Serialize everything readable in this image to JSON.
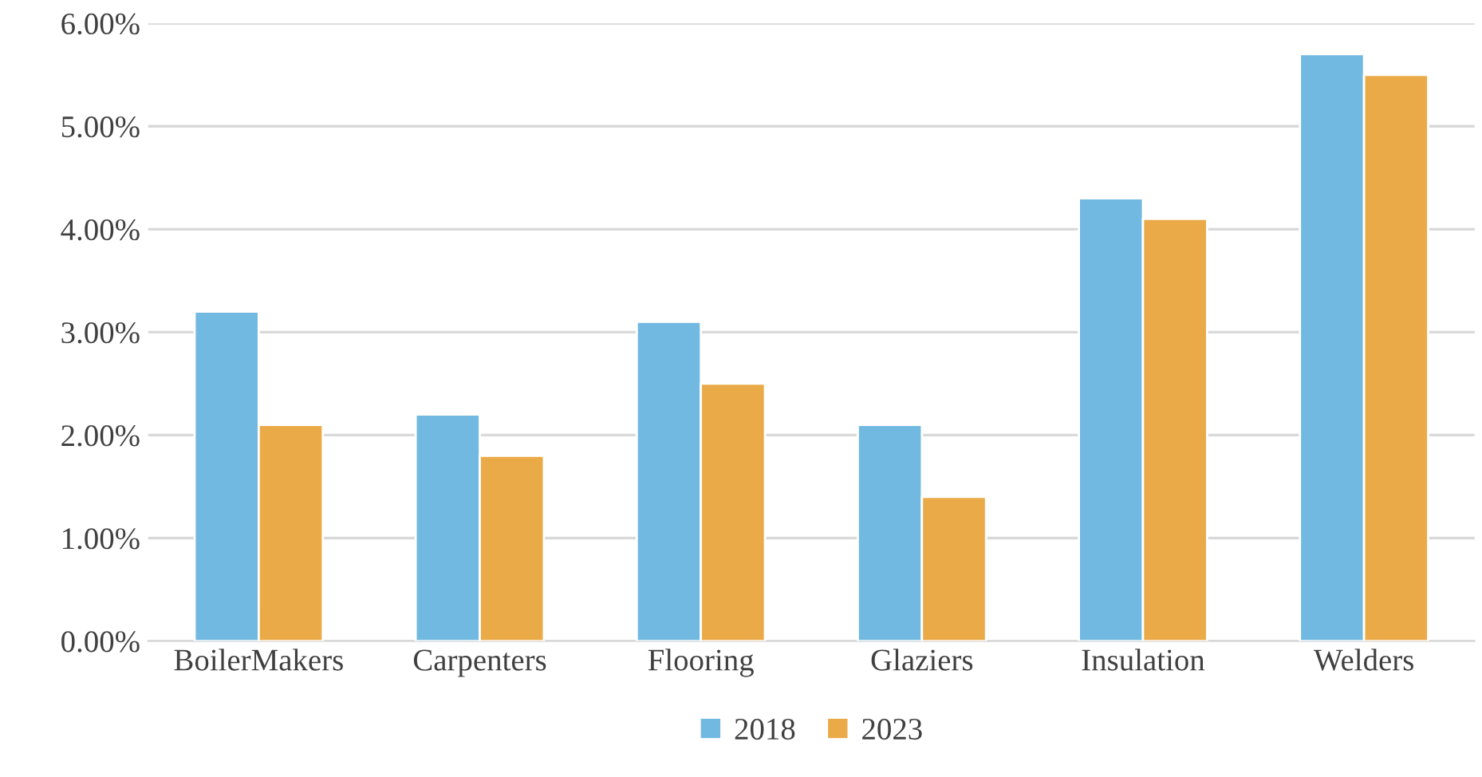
{
  "chart_data": {
    "type": "bar",
    "categories": [
      "BoilerMakers",
      "Carpenters",
      "Flooring",
      "Glaziers",
      "Insulation",
      "Welders"
    ],
    "series": [
      {
        "name": "2018",
        "color": "#71b9e1",
        "values": [
          3.2,
          2.2,
          3.1,
          2.1,
          4.3,
          5.7
        ]
      },
      {
        "name": "2023",
        "color": "#eaaa47",
        "values": [
          2.1,
          1.8,
          2.5,
          1.4,
          4.1,
          5.5
        ]
      }
    ],
    "ylim": [
      0,
      6
    ],
    "yticks": [
      {
        "value": 0,
        "label": "0.00%"
      },
      {
        "value": 1,
        "label": "1.00%"
      },
      {
        "value": 2,
        "label": "2.00%"
      },
      {
        "value": 3,
        "label": "3.00%"
      },
      {
        "value": 4,
        "label": "4.00%"
      },
      {
        "value": 5,
        "label": "5.00%"
      },
      {
        "value": 6,
        "label": "6.00%"
      }
    ],
    "grid": "y",
    "legend": "bottom"
  }
}
